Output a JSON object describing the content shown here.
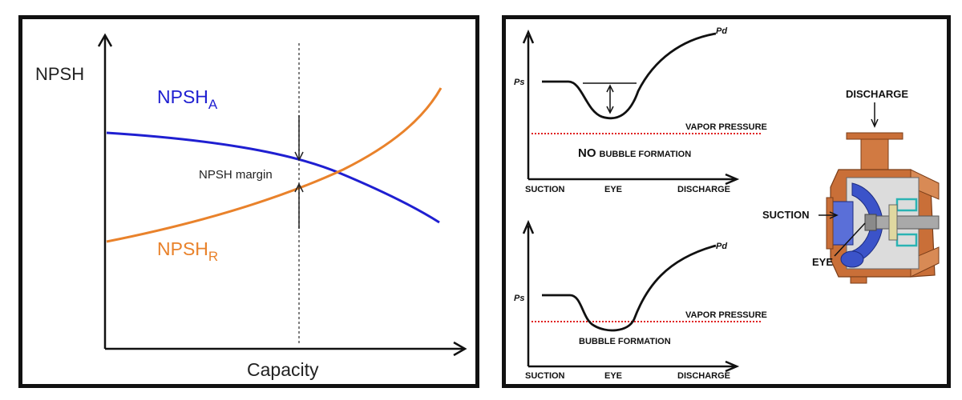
{
  "left": {
    "y_axis_label": "NPSH",
    "x_axis_label": "Capacity",
    "npsha": {
      "main": "NPSH",
      "sub": "A"
    },
    "npshr": {
      "main": "NPSH",
      "sub": "R"
    },
    "margin_label": "NPSH margin",
    "colors": {
      "npsha": "#1f1fd1",
      "npshr": "#e9822b",
      "guide": "#555555"
    }
  },
  "top_diagram": {
    "pd": "Pd",
    "ps": "Ps",
    "vapor": "VAPOR PRESSURE",
    "no_word": "NO",
    "bubble_text": "BUBBLE FORMATION",
    "x_labels": [
      "SUCTION",
      "EYE",
      "DISCHARGE"
    ]
  },
  "bottom_diagram": {
    "pd": "Pd",
    "ps": "Ps",
    "vapor": "VAPOR PRESSURE",
    "bubble_text": "BUBBLE FORMATION",
    "x_labels": [
      "SUCTION",
      "EYE",
      "DISCHARGE"
    ]
  },
  "pump": {
    "discharge": "DISCHARGE",
    "suction": "SUCTION",
    "eye": "EYE",
    "colors": {
      "casing": "#c96f38",
      "impeller": "#3b53c9",
      "shaft": "#a9a9a9",
      "bearing": "#2ab3b3",
      "vapor_line": "#e02020"
    }
  }
}
